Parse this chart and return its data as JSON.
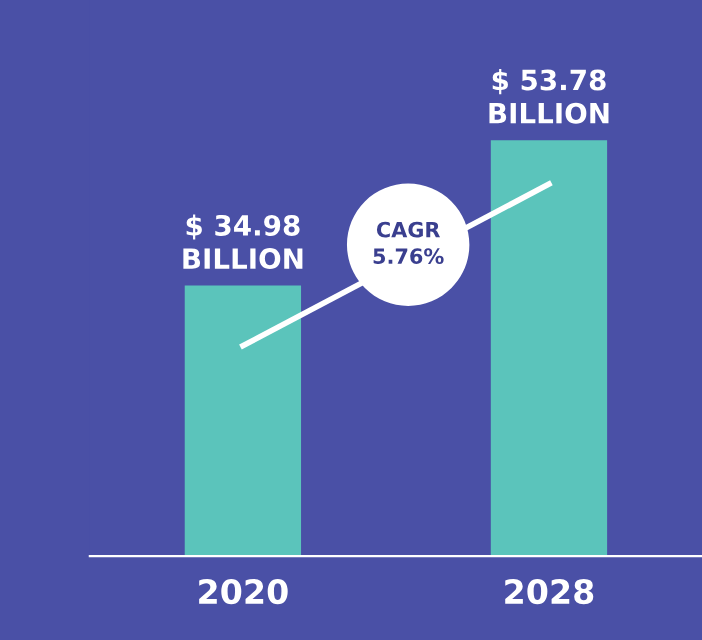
{
  "chart_data": {
    "type": "bar",
    "categories": [
      "2020",
      "2028"
    ],
    "series": [
      {
        "color": "#5bc4bb",
        "values": [
          34.98,
          53.78
        ],
        "value_labels": [
          "$ 34.98\nBILLION",
          "$ 53.78\nBILLION"
        ]
      },
      {
        "type": "line",
        "color": "#ffffff",
        "values": [
          27.2,
          48.1
        ]
      }
    ],
    "annotations": [
      "CAGR\n5.76%"
    ],
    "grid": false,
    "legend": false
  }
}
